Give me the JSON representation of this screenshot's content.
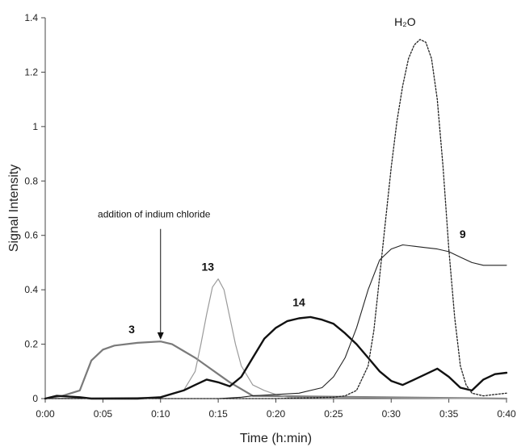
{
  "chart_data": {
    "type": "line",
    "title": "",
    "xlabel": "Time (h:min)",
    "ylabel": "Signal Intensity",
    "xlim": [
      0,
      40
    ],
    "ylim": [
      0,
      1.4
    ],
    "x_ticks": [
      {
        "v": 0,
        "label": "0:00"
      },
      {
        "v": 5,
        "label": "0:05"
      },
      {
        "v": 10,
        "label": "0:10"
      },
      {
        "v": 15,
        "label": "0:15"
      },
      {
        "v": 20,
        "label": "0:20"
      },
      {
        "v": 25,
        "label": "0:25"
      },
      {
        "v": 30,
        "label": "0:30"
      },
      {
        "v": 35,
        "label": "0:35"
      },
      {
        "v": 40,
        "label": "0:40"
      }
    ],
    "y_ticks": [
      {
        "v": 0,
        "label": "0"
      },
      {
        "v": 0.2,
        "label": "0.2"
      },
      {
        "v": 0.4,
        "label": "0.4"
      },
      {
        "v": 0.6,
        "label": "0.6"
      },
      {
        "v": 0.8,
        "label": "0.8"
      },
      {
        "v": 1.0,
        "label": "1"
      },
      {
        "v": 1.2,
        "label": "1.2"
      },
      {
        "v": 1.4,
        "label": "1.4"
      }
    ],
    "grid": false,
    "legend": "none",
    "annotation": {
      "text": "addition of indium chloride",
      "x": 10,
      "y_from": 0.6,
      "y_to": 0.22
    },
    "series": [
      {
        "name": "3",
        "label_x": 7.5,
        "label_y": 0.24,
        "color": "#7a7a7a",
        "width": 2.2,
        "dash": "",
        "x": [
          0,
          1.5,
          3,
          4,
          5,
          6,
          8,
          10,
          11,
          12,
          13,
          14,
          15,
          16,
          17,
          18,
          40
        ],
        "y": [
          0,
          0.01,
          0.03,
          0.14,
          0.18,
          0.195,
          0.205,
          0.21,
          0.2,
          0.175,
          0.15,
          0.12,
          0.09,
          0.06,
          0.035,
          0.01,
          0
        ]
      },
      {
        "name": "13",
        "label_x": 14.1,
        "label_y": 0.47,
        "color": "#9a9a9a",
        "width": 1.2,
        "dash": "",
        "x": [
          0,
          10,
          12,
          13,
          13.5,
          14,
          14.5,
          15,
          15.5,
          16,
          16.5,
          17,
          18,
          19,
          20,
          21,
          40
        ],
        "y": [
          0,
          0.005,
          0.03,
          0.1,
          0.2,
          0.31,
          0.41,
          0.44,
          0.4,
          0.3,
          0.2,
          0.12,
          0.05,
          0.03,
          0.015,
          0.005,
          0
        ]
      },
      {
        "name": "14",
        "label_x": 22,
        "label_y": 0.34,
        "color": "#111111",
        "width": 2.4,
        "dash": "",
        "x": [
          0,
          1,
          3,
          4,
          8,
          10,
          12,
          13,
          14,
          15,
          16,
          17,
          18,
          19,
          20,
          21,
          22,
          23,
          24,
          25,
          26,
          27,
          28,
          29,
          30,
          31,
          32,
          33,
          34,
          35,
          36,
          37,
          38,
          39,
          40
        ],
        "y": [
          0,
          0.01,
          0.005,
          0,
          0,
          0.005,
          0.03,
          0.05,
          0.07,
          0.06,
          0.045,
          0.08,
          0.15,
          0.22,
          0.26,
          0.285,
          0.295,
          0.3,
          0.29,
          0.275,
          0.24,
          0.2,
          0.15,
          0.1,
          0.065,
          0.05,
          0.07,
          0.09,
          0.11,
          0.08,
          0.04,
          0.03,
          0.07,
          0.09,
          0.095
        ]
      },
      {
        "name": "9",
        "label_x": 36.2,
        "label_y": 0.59,
        "color": "#222222",
        "width": 1.1,
        "dash": "",
        "x": [
          0,
          15,
          17,
          18,
          20,
          22,
          24,
          25,
          26,
          27,
          28,
          29,
          30,
          31,
          32,
          33,
          34,
          35,
          36,
          37,
          38,
          39,
          40
        ],
        "y": [
          0,
          0,
          0.005,
          0.01,
          0.015,
          0.02,
          0.04,
          0.08,
          0.15,
          0.26,
          0.4,
          0.51,
          0.55,
          0.565,
          0.56,
          0.555,
          0.55,
          0.54,
          0.52,
          0.5,
          0.49,
          0.49,
          0.49
        ]
      },
      {
        "name": "H₂O",
        "label_x": 31.2,
        "label_y": 1.37,
        "color": "#222222",
        "width": 1.3,
        "dash": "2,2",
        "x": [
          0,
          20,
          25,
          26,
          27,
          28,
          28.5,
          29,
          29.5,
          30,
          30.5,
          31,
          31.5,
          32,
          32.5,
          33,
          33.5,
          34,
          34.5,
          35,
          35.5,
          36,
          36.5,
          37,
          38,
          39,
          40
        ],
        "y": [
          0,
          0,
          0.005,
          0.01,
          0.03,
          0.12,
          0.25,
          0.45,
          0.65,
          0.85,
          1.02,
          1.15,
          1.25,
          1.3,
          1.32,
          1.31,
          1.25,
          1.1,
          0.85,
          0.55,
          0.3,
          0.12,
          0.05,
          0.02,
          0.01,
          0.015,
          0.02
        ]
      }
    ]
  }
}
